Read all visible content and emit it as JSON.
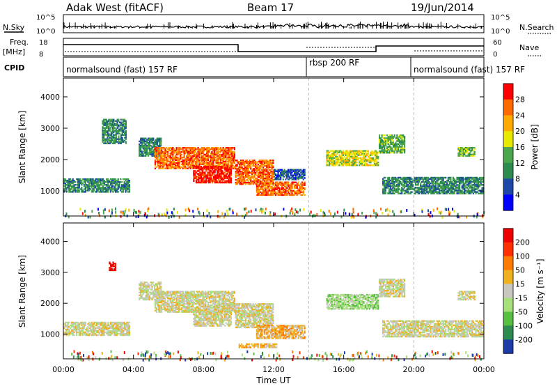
{
  "header": {
    "station": "Adak West (fitACF)",
    "beam": "Beam 17",
    "date": "19/Jun/2014"
  },
  "left_labels": {
    "nsky": "N.Sky",
    "freq_top": "Freq.",
    "freq_unit": "[MHz]",
    "cpid": "CPID"
  },
  "right_labels": {
    "nsearch": "N.Search",
    "nave": "Nave"
  },
  "small_scales": {
    "nsky_top": "10^5",
    "nsky_bottom": "10^0",
    "nsearch_top": "10^5",
    "nsearch_bottom": "10^0",
    "freq_ticks": [
      "18",
      "8"
    ],
    "nave_ticks": [
      "60",
      "0"
    ]
  },
  "cpid_segments": [
    {
      "label": "normalsound (fast) 157 RF",
      "start_hour": 0,
      "end_hour": 14
    },
    {
      "label": "rbsp 200 RF",
      "start_hour": 14,
      "end_hour": 20
    },
    {
      "label": "normalsound (fast) 157 RF",
      "start_hour": 20,
      "end_hour": 24
    }
  ],
  "chart_data": [
    {
      "type": "heatmap",
      "quantity": "Power",
      "colorbar_label": "Power [dB]",
      "colorbar_ticks": [
        "28",
        "24",
        "20",
        "16",
        "12",
        "8",
        "4"
      ],
      "colors": [
        "#0000ff",
        "#1e48a8",
        "#2c8c50",
        "#4ca74c",
        "#e8e800",
        "#ffaa00",
        "#ff6a00",
        "#ff0000"
      ],
      "ylabel": "Slant Range [km]",
      "y_ticks": [
        "1000",
        "2000",
        "3000",
        "4000"
      ],
      "ylim": [
        200,
        4600
      ],
      "xlim": [
        0,
        24
      ],
      "regions": [
        {
          "t0": 0,
          "t1": 3.8,
          "r0": 950,
          "r1": 1400,
          "level": 2
        },
        {
          "t0": 2.2,
          "t1": 3.6,
          "r0": 2500,
          "r1": 3300,
          "level": 2
        },
        {
          "t0": 4.3,
          "t1": 5.6,
          "r0": 2100,
          "r1": 2700,
          "level": 2
        },
        {
          "t0": 5.2,
          "t1": 9.8,
          "r0": 1700,
          "r1": 2400,
          "level": 6
        },
        {
          "t0": 7.4,
          "t1": 9.6,
          "r0": 1250,
          "r1": 1800,
          "level": 7
        },
        {
          "t0": 9.8,
          "t1": 12.0,
          "r0": 1200,
          "r1": 2000,
          "level": 6
        },
        {
          "t0": 11.0,
          "t1": 13.8,
          "r0": 850,
          "r1": 1300,
          "level": 6
        },
        {
          "t0": 12.0,
          "t1": 13.8,
          "r0": 1350,
          "r1": 1700,
          "level": 1
        },
        {
          "t0": 15.0,
          "t1": 18.0,
          "r0": 1800,
          "r1": 2300,
          "level": 4
        },
        {
          "t0": 18.0,
          "t1": 19.5,
          "r0": 2200,
          "r1": 2800,
          "level": 3
        },
        {
          "t0": 18.2,
          "t1": 24.0,
          "r0": 900,
          "r1": 1450,
          "level": 2
        },
        {
          "t0": 22.5,
          "t1": 23.5,
          "r0": 2100,
          "r1": 2400,
          "level": 3
        }
      ]
    },
    {
      "type": "heatmap",
      "quantity": "Velocity",
      "colorbar_label": "Velocity [m s⁻¹]",
      "colorbar_ticks": [
        "200",
        "100",
        "50",
        "15",
        "-15",
        "-50",
        "-100",
        "-200"
      ],
      "colors": [
        "#1e3ca8",
        "#2c8c50",
        "#58c040",
        "#a6e07a",
        "#c8c8c0",
        "#f0b020",
        "#ff7a00",
        "#ff3000",
        "#ee0000"
      ],
      "ylabel": "Slant Range [km]",
      "y_ticks": [
        "1000",
        "2000",
        "3000",
        "4000"
      ],
      "ylim": [
        200,
        4600
      ],
      "xlim": [
        0,
        24
      ],
      "regions": [
        {
          "t0": 0,
          "t1": 3.8,
          "r0": 950,
          "r1": 1400,
          "level": 4
        },
        {
          "t0": 2.6,
          "t1": 3.0,
          "r0": 3050,
          "r1": 3350,
          "level": 8
        },
        {
          "t0": 4.3,
          "t1": 5.6,
          "r0": 2100,
          "r1": 2700,
          "level": 4
        },
        {
          "t0": 5.2,
          "t1": 9.8,
          "r0": 1700,
          "r1": 2400,
          "level": 4
        },
        {
          "t0": 7.4,
          "t1": 9.6,
          "r0": 1250,
          "r1": 1800,
          "level": 4
        },
        {
          "t0": 9.8,
          "t1": 12.0,
          "r0": 1200,
          "r1": 2000,
          "level": 4
        },
        {
          "t0": 11.0,
          "t1": 13.8,
          "r0": 850,
          "r1": 1300,
          "level": 5
        },
        {
          "t0": 10.0,
          "t1": 12.2,
          "r0": 550,
          "r1": 700,
          "level": 5
        },
        {
          "t0": 15.0,
          "t1": 18.0,
          "r0": 1800,
          "r1": 2300,
          "level": 3
        },
        {
          "t0": 18.0,
          "t1": 19.5,
          "r0": 2200,
          "r1": 2800,
          "level": 4
        },
        {
          "t0": 18.2,
          "t1": 24.0,
          "r0": 900,
          "r1": 1450,
          "level": 4
        },
        {
          "t0": 22.5,
          "t1": 23.5,
          "r0": 2100,
          "r1": 2400,
          "level": 4
        }
      ]
    }
  ],
  "x_axis": {
    "label": "Time UT",
    "ticks": [
      "00:00",
      "04:00",
      "08:00",
      "12:00",
      "16:00",
      "20:00",
      "00:00"
    ]
  }
}
